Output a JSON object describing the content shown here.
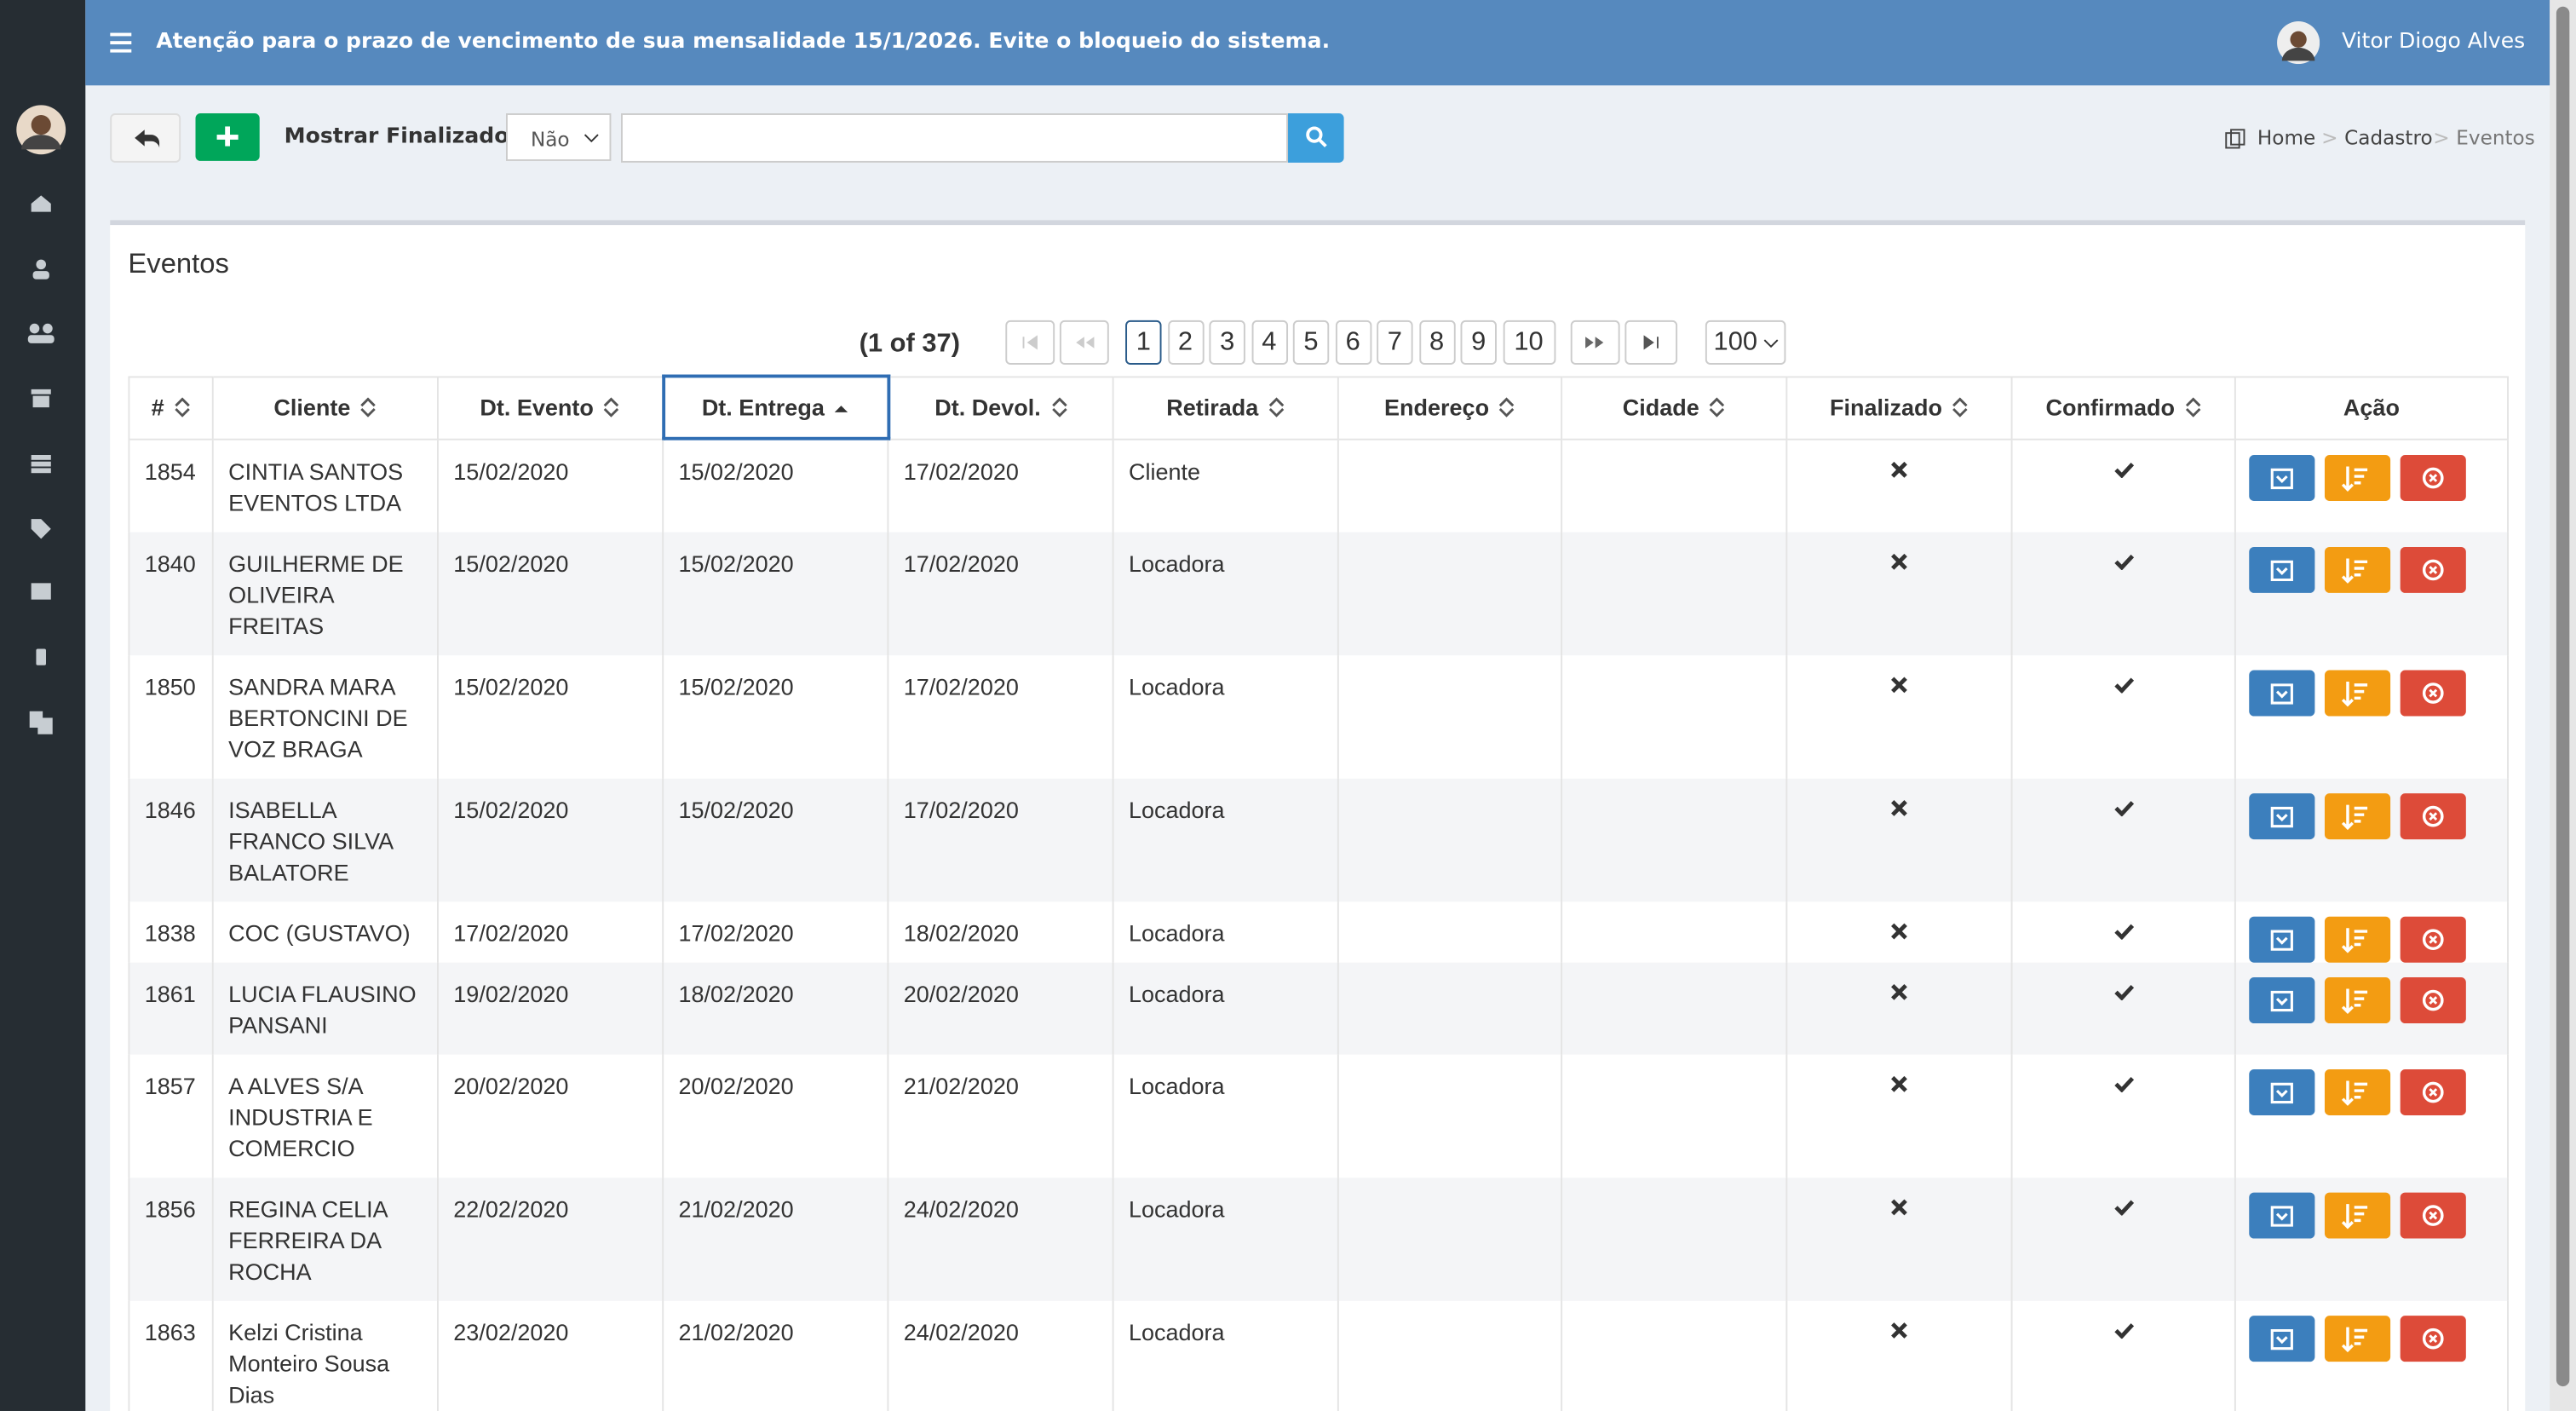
{
  "header": {
    "notice": "Atenção para o prazo de vencimento de sua mensalidade 15/1/2026. Evite o bloqueio do sistema.",
    "user": "Vitor Diogo Alves"
  },
  "toolbar": {
    "filter_label": "Mostrar Finalizados:",
    "filter_value": "Não"
  },
  "breadcrumb": [
    "Home",
    "Cadastro",
    "Eventos"
  ],
  "panel": {
    "title": "Eventos",
    "page_info": "(1 of 37)",
    "pages": [
      "1",
      "2",
      "3",
      "4",
      "5",
      "6",
      "7",
      "8",
      "9",
      "10"
    ],
    "per_page": "100"
  },
  "table": {
    "columns": [
      "#",
      "Cliente",
      "Dt. Evento",
      "Dt. Entrega",
      "Dt. Devol.",
      "Retirada",
      "Endereço",
      "Cidade",
      "Finalizado",
      "Confirmado",
      "Ação"
    ],
    "rows": [
      [
        "1854",
        "CINTIA SANTOS EVENTOS LTDA",
        "15/02/2020",
        "15/02/2020",
        "17/02/2020",
        "Cliente"
      ],
      [
        "1840",
        "GUILHERME DE OLIVEIRA FREITAS",
        "15/02/2020",
        "15/02/2020",
        "17/02/2020",
        "Locadora"
      ],
      [
        "1850",
        "SANDRA MARA BERTONCINI DE VOZ BRAGA",
        "15/02/2020",
        "15/02/2020",
        "17/02/2020",
        "Locadora"
      ],
      [
        "1846",
        "ISABELLA FRANCO SILVA BALATORE",
        "15/02/2020",
        "15/02/2020",
        "17/02/2020",
        "Locadora"
      ],
      [
        "1838",
        "COC (GUSTAVO)",
        "17/02/2020",
        "17/02/2020",
        "18/02/2020",
        "Locadora"
      ],
      [
        "1861",
        "LUCIA FLAUSINO PANSANI",
        "19/02/2020",
        "18/02/2020",
        "20/02/2020",
        "Locadora"
      ],
      [
        "1857",
        "A ALVES S/A INDUSTRIA E COMERCIO",
        "20/02/2020",
        "20/02/2020",
        "21/02/2020",
        "Locadora"
      ],
      [
        "1856",
        "REGINA CELIA FERREIRA DA ROCHA",
        "22/02/2020",
        "21/02/2020",
        "24/02/2020",
        "Locadora"
      ],
      [
        "1863",
        "Kelzi Cristina Monteiro Sousa Dias",
        "23/02/2020",
        "21/02/2020",
        "24/02/2020",
        "Locadora"
      ]
    ]
  }
}
